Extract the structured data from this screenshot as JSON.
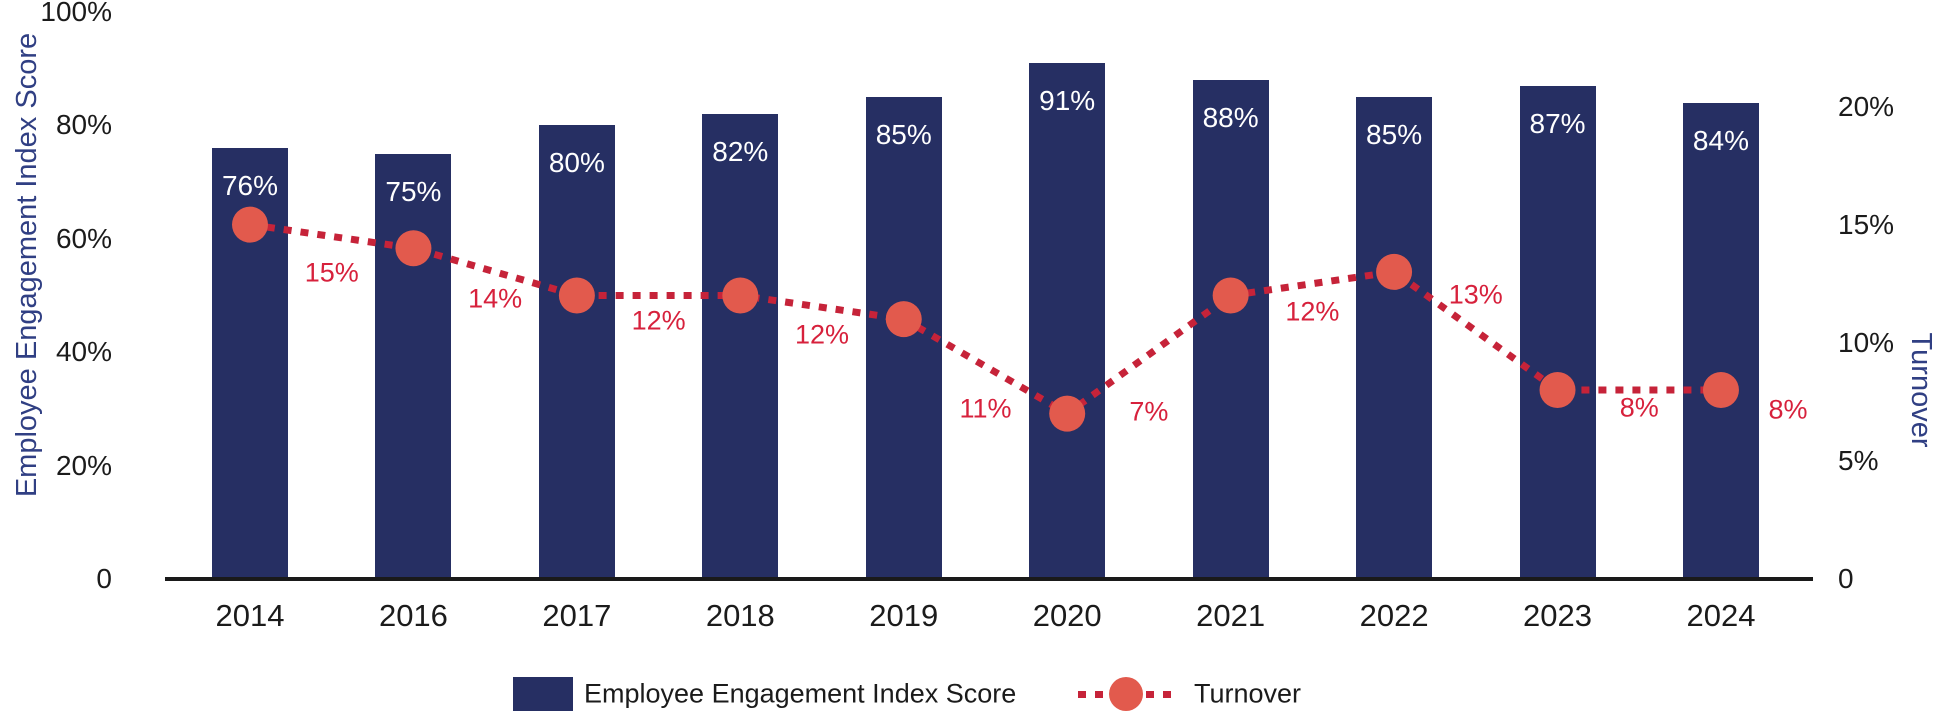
{
  "chart_data": {
    "type": "bar-line-combo",
    "categories": [
      "2014",
      "2016",
      "2017",
      "2018",
      "2019",
      "2020",
      "2021",
      "2022",
      "2023",
      "2024"
    ],
    "series": [
      {
        "name": "Employee Engagement Index Score",
        "type": "bar",
        "axis": "left",
        "values": [
          76,
          75,
          80,
          82,
          85,
          91,
          88,
          85,
          87,
          84
        ],
        "labels": [
          "76%",
          "75%",
          "80%",
          "82%",
          "85%",
          "91%",
          "88%",
          "85%",
          "87%",
          "84%"
        ]
      },
      {
        "name": "Turnover",
        "type": "line",
        "style": "dotted-with-markers",
        "axis": "right",
        "values": [
          15,
          14,
          12,
          12,
          11,
          7,
          12,
          13,
          8,
          8
        ],
        "labels": [
          "15%",
          "14%",
          "12%",
          "12%",
          "11%",
          "7%",
          "12%",
          "13%",
          "8%",
          "8%"
        ]
      }
    ],
    "left_axis": {
      "title": "Employee Engagement Index Score",
      "tick_labels": [
        "0",
        "20%",
        "40%",
        "60%",
        "80%",
        "100%"
      ],
      "tick_values": [
        0,
        20,
        40,
        60,
        80,
        100
      ],
      "range": [
        0,
        100
      ]
    },
    "right_axis": {
      "title": "Turnover",
      "tick_labels": [
        "0",
        "5%",
        "10%",
        "15%",
        "20%"
      ],
      "tick_values": [
        0,
        5,
        10,
        15,
        20
      ],
      "range": [
        0,
        24
      ]
    },
    "grid": "off",
    "legend_position": "bottom-center"
  },
  "legend": {
    "bar_label": "Employee Engagement Index Score",
    "line_label": "Turnover"
  },
  "colors": {
    "bar": "#262F63",
    "line": "#C62339",
    "marker": "#E25A4D",
    "data_label_red": "#D7213C",
    "bar_value_label": "#FFFFFF",
    "tick_text": "#1B1B1B",
    "axis_title": "#303F83",
    "axis_line": "#1A1A1A",
    "background": "#FFFFFF"
  }
}
